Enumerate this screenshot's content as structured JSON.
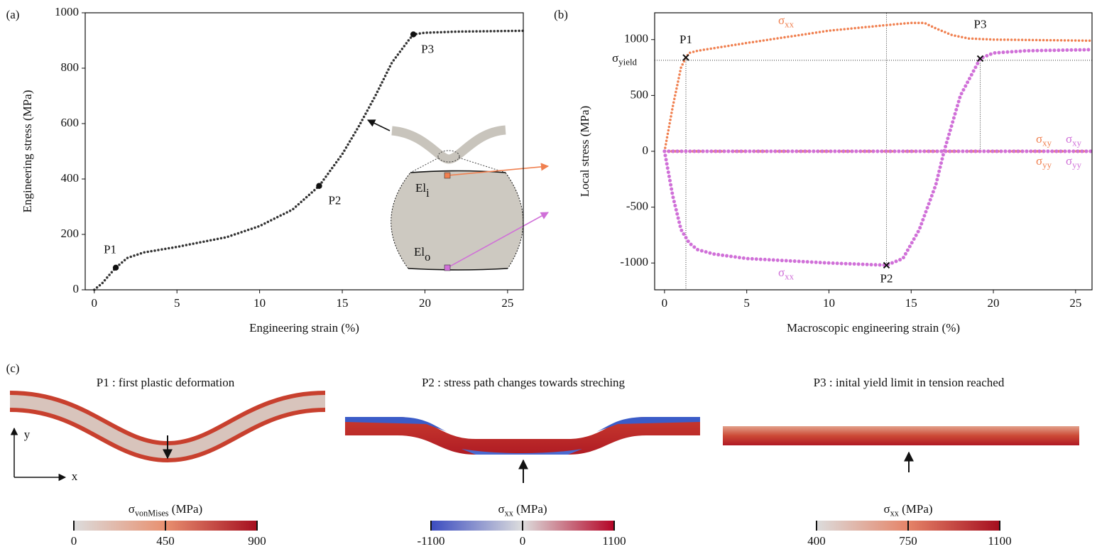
{
  "chart_data": [
    {
      "type": "line",
      "label": "(a)",
      "xlabel": "Engineering strain (%)",
      "ylabel": "Engineering stress (MPa)",
      "xlim": [
        -0.55,
        25.95
      ],
      "ylim": [
        0,
        1000
      ],
      "xticks": [
        0,
        5,
        10,
        15,
        20,
        25
      ],
      "yticks": [
        0,
        200,
        400,
        600,
        800,
        1000
      ],
      "series": [
        {
          "color": "#333333",
          "x": [
            0,
            0.5,
            1,
            1.3,
            2,
            3,
            5,
            8,
            10,
            12,
            13.6,
            15,
            16,
            17,
            18,
            19,
            19.3,
            20,
            22,
            26
          ],
          "values": [
            0,
            25,
            60,
            80,
            115,
            135,
            155,
            190,
            230,
            290,
            375,
            490,
            590,
            700,
            820,
            900,
            922,
            928,
            932,
            935
          ]
        }
      ],
      "points": [
        {
          "label": "P1",
          "x": 1.3,
          "y": 80
        },
        {
          "label": "P2",
          "x": 13.6,
          "y": 375
        },
        {
          "label": "P3",
          "x": 19.3,
          "y": 922
        }
      ],
      "inset_labels": [
        {
          "base": "El",
          "sub": "i"
        },
        {
          "base": "El",
          "sub": "o"
        }
      ]
    },
    {
      "type": "line",
      "label": "(b)",
      "xlabel": "Macroscopic engineering strain (%)",
      "ylabel": "Local stress (MPa)",
      "xlim": [
        -0.6,
        26
      ],
      "ylim": [
        -1240,
        1240
      ],
      "xticks": [
        0,
        5,
        10,
        15,
        20,
        25
      ],
      "yticks": [
        -1000,
        -500,
        0,
        500,
        1000
      ],
      "series": [
        {
          "name": {
            "base": "σ",
            "sub": "xx"
          },
          "color": "#f08050",
          "x": [
            0,
            0.5,
            1,
            1.3,
            1.5,
            2,
            5,
            10,
            13.5,
            15,
            15.8,
            16.5,
            17.5,
            18.5,
            20,
            26
          ],
          "values": [
            0,
            400,
            750,
            840,
            880,
            900,
            970,
            1080,
            1130,
            1150,
            1150,
            1100,
            1040,
            1010,
            1000,
            990
          ]
        },
        {
          "name": {
            "base": "σ",
            "sub": "xx"
          },
          "color": "#d070d8",
          "x": [
            0,
            0.5,
            1,
            1.5,
            2,
            3,
            5,
            10,
            13.5,
            14.5,
            15.5,
            16.5,
            17,
            18,
            19.2,
            20,
            22,
            26
          ],
          "values": [
            0,
            -400,
            -700,
            -820,
            -880,
            -920,
            -960,
            -1000,
            -1020,
            -960,
            -700,
            -300,
            0,
            500,
            830,
            880,
            900,
            910
          ]
        },
        {
          "name": {
            "base": "σ",
            "sub": "xy"
          },
          "color": "#f08050",
          "x": [
            0,
            26
          ],
          "values": [
            0,
            0
          ]
        },
        {
          "name": {
            "base": "σ",
            "sub": "xy"
          },
          "color": "#d070d8",
          "x": [
            0,
            26
          ],
          "values": [
            0,
            0
          ]
        },
        {
          "name": {
            "base": "σ",
            "sub": "yy"
          },
          "color": "#f08050",
          "x": [
            0,
            26
          ],
          "values": [
            0,
            0
          ]
        },
        {
          "name": {
            "base": "σ",
            "sub": "yy"
          },
          "color": "#d070d8",
          "x": [
            0,
            26
          ],
          "values": [
            0,
            0
          ]
        }
      ],
      "points": [
        {
          "label": "P1",
          "x": 1.3,
          "y": 840
        },
        {
          "label": "P2",
          "x": 13.5,
          "y": -1020
        },
        {
          "label": "P3",
          "x": 19.2,
          "y": 830
        }
      ],
      "yield_line": {
        "label": {
          "base": "σ",
          "sub": "yield"
        },
        "value": 815
      }
    }
  ],
  "fields": {
    "label": "(c)",
    "axis_labels": {
      "x": "x",
      "y": "y"
    },
    "items": [
      {
        "title": "P1 : first plastic deformation",
        "colorbar": {
          "label": {
            "base": "σ",
            "sub": "vonMises",
            "after": " (MPa)"
          },
          "lim": [
            0,
            900
          ],
          "ticks": [
            0,
            450,
            900
          ],
          "colors": [
            "#dcdcdc",
            "#e89070",
            "#a50e1f"
          ]
        }
      },
      {
        "title": "P2 : stress path changes towards streching",
        "colorbar": {
          "label": {
            "base": "σ",
            "sub": "xx",
            "after": " (MPa)"
          },
          "lim": [
            -1100,
            1100
          ],
          "ticks": [
            -1100,
            0,
            1100
          ],
          "colors": [
            "#3b4cc0",
            "#dddddd",
            "#b40426"
          ]
        }
      },
      {
        "title": "P3 : inital yield limit in tension reached",
        "colorbar": {
          "label": {
            "base": "σ",
            "sub": "xx",
            "after": " (MPa)"
          },
          "lim": [
            400,
            1100
          ],
          "ticks": [
            400,
            750,
            1100
          ],
          "colors": [
            "#dcdcdc",
            "#e58468",
            "#a50e1f"
          ]
        }
      }
    ]
  }
}
